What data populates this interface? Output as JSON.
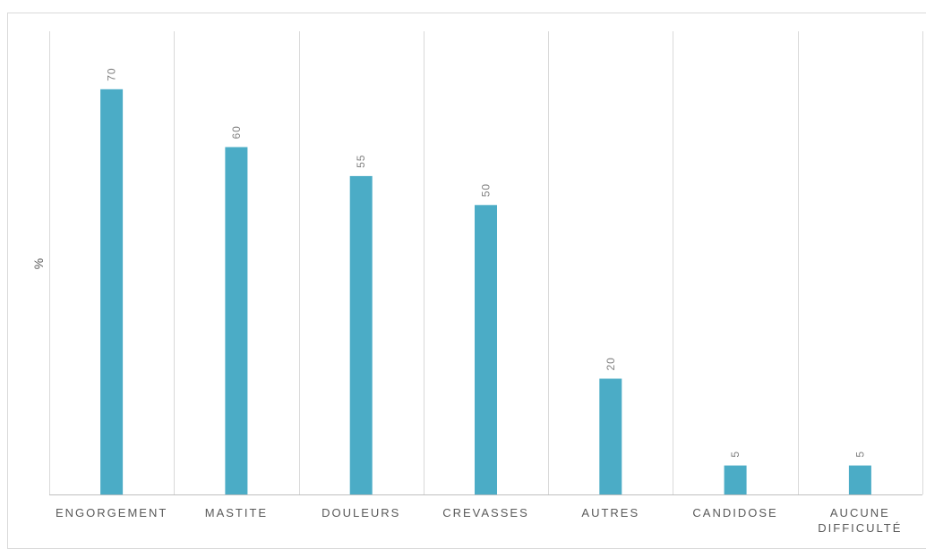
{
  "chart_data": {
    "type": "bar",
    "categories": [
      "ENGORGEMENT",
      "MASTITE",
      "DOULEURS",
      "CREVASSES",
      "AUTRES",
      "CANDIDOSE",
      "AUCUNE DIFFICULTÉ"
    ],
    "category_lines": [
      [
        "ENGORGEMENT"
      ],
      [
        "MASTITE"
      ],
      [
        "DOULEURS"
      ],
      [
        "CREVASSES"
      ],
      [
        "AUTRES"
      ],
      [
        "CANDIDOSE"
      ],
      [
        "AUCUNE",
        "DIFFICULTÉ"
      ]
    ],
    "values": [
      70,
      60,
      55,
      50,
      20,
      5,
      5
    ],
    "data_labels": [
      "70",
      "60",
      "55",
      "50",
      "20",
      "5",
      "5"
    ],
    "title": "",
    "xlabel": "",
    "ylabel": "%",
    "ylim": [
      0,
      80
    ],
    "grid": "vertical separators",
    "legend": "none",
    "colors": {
      "bar": "#4bacc6",
      "grid": "#d9d9d9",
      "axis": "#bfbfbf",
      "tick_text": "#595959",
      "label_text": "#7f7f7f"
    }
  }
}
